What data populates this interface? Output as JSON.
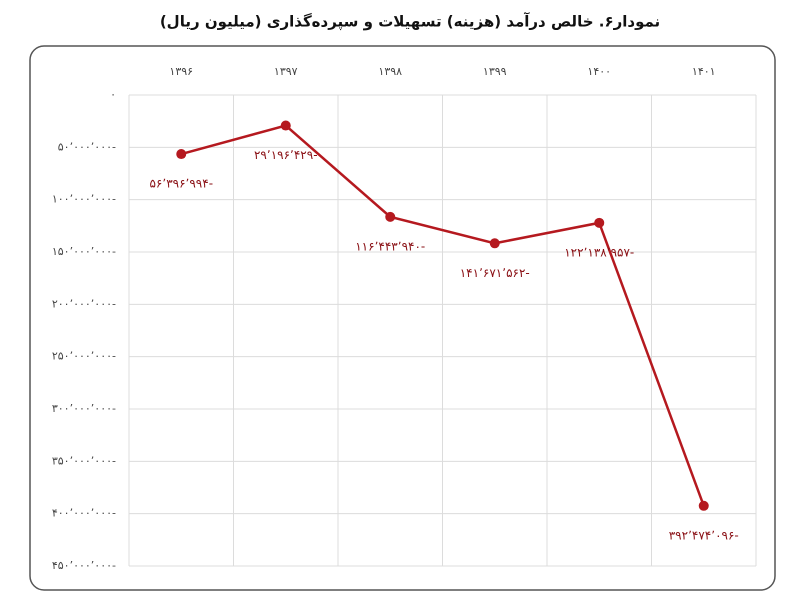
{
  "chart_data": {
    "type": "line",
    "title": "نمودار۶. خالص درآمد (هزینه) تسهیلات و سپرده‌گذاری (میلیون ریال)",
    "categories": [
      "۱۳۹۶",
      "۱۳۹۷",
      "۱۳۹۸",
      "۱۳۹۹",
      "۱۴۰۰",
      "۱۴۰۱"
    ],
    "series": [
      {
        "color": "#b5191f",
        "values": [
          -56396994,
          -29196429,
          -116443940,
          -141671562,
          -122138957,
          -392474096
        ],
        "value_labels": [
          "۵۶٬۳۹۶٬۹۹۴-",
          "۲۹٬۱۹۶٬۴۲۹-",
          "۱۱۶٬۴۴۳٬۹۴۰-",
          "۱۴۱٬۶۷۱٬۵۶۲-",
          "۱۲۲٬۱۳۸٬۹۵۷-",
          "۳۹۲٬۴۷۴٬۰۹۶-"
        ]
      }
    ],
    "ylim": [
      -450000000,
      0
    ],
    "yticks": [
      {
        "value": 0,
        "label": "۰"
      },
      {
        "value": -50000000,
        "label": "۵۰٬۰۰۰٬۰۰۰-"
      },
      {
        "value": -100000000,
        "label": "۱۰۰٬۰۰۰٬۰۰۰-"
      },
      {
        "value": -150000000,
        "label": "۱۵۰٬۰۰۰٬۰۰۰-"
      },
      {
        "value": -200000000,
        "label": "۲۰۰٬۰۰۰٬۰۰۰-"
      },
      {
        "value": -250000000,
        "label": "۲۵۰٬۰۰۰٬۰۰۰-"
      },
      {
        "value": -300000000,
        "label": "۳۰۰٬۰۰۰٬۰۰۰-"
      },
      {
        "value": -350000000,
        "label": "۳۵۰٬۰۰۰٬۰۰۰-"
      },
      {
        "value": -400000000,
        "label": "۴۰۰٬۰۰۰٬۰۰۰-"
      },
      {
        "value": -450000000,
        "label": "۴۵۰٬۰۰۰٬۰۰۰-"
      }
    ],
    "grid": true
  }
}
